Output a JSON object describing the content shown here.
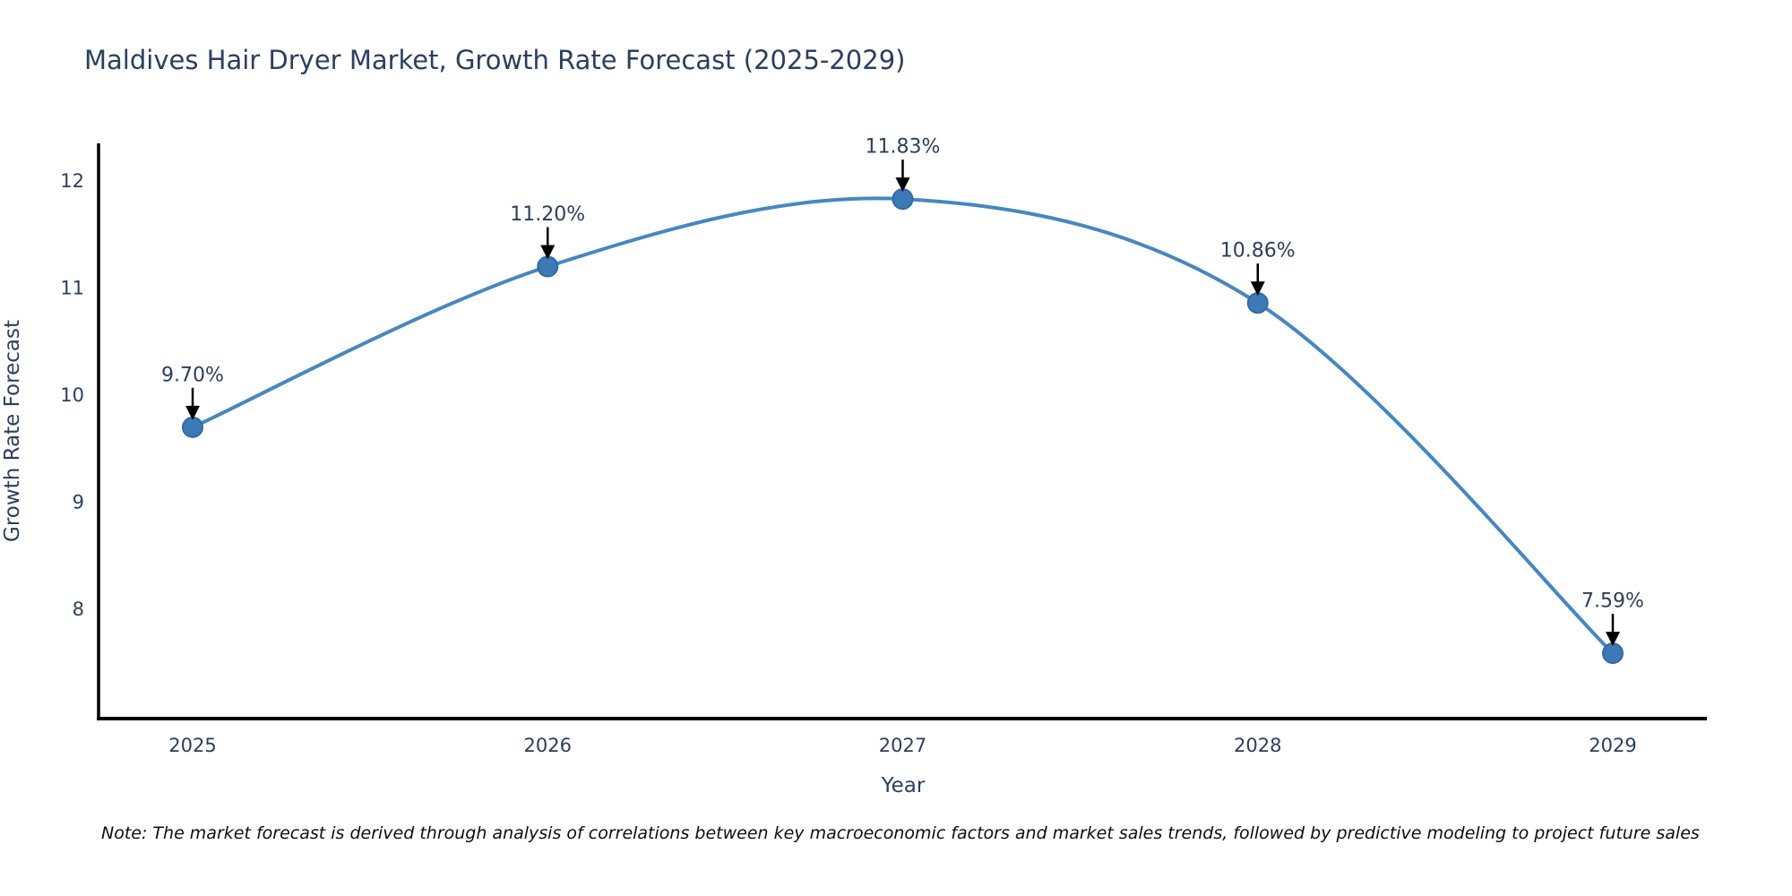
{
  "page": {
    "title": "Maldives Hair Dryer Market, Growth Rate Forecast (2025-2029)",
    "note": "Note: The market forecast is derived through analysis of correlations between key macroeconomic factors and market sales trends, followed by predictive modeling to project future sales"
  },
  "chart_data": {
    "type": "line",
    "title": "Maldives Hair Dryer Market, Growth Rate Forecast (2025-2029)",
    "x": [
      2025,
      2026,
      2027,
      2028,
      2029
    ],
    "series": [
      {
        "name": "Growth Rate Forecast",
        "values": [
          9.7,
          11.2,
          11.83,
          10.86,
          7.59
        ]
      }
    ],
    "data_labels": [
      "9.70%",
      "11.20%",
      "11.83%",
      "10.86%",
      "7.59%"
    ],
    "xlabel": "Year",
    "ylabel": "Growth Rate Forecast",
    "xticks": [
      "2025",
      "2026",
      "2027",
      "2028",
      "2029"
    ],
    "yticks": [
      8,
      9,
      10,
      11,
      12
    ],
    "xlim": [
      2024.735,
      2029.265
    ],
    "ylim": [
      6.98,
      12.35
    ],
    "line_shape": "spline",
    "grid": false,
    "legend": "none",
    "annotations_have_arrows": true,
    "colors": {
      "line": "#4687c0",
      "marker_fill": "#3d7ab5",
      "marker_edge": "#2f6ba6",
      "axis_line": "#000000",
      "tick_text": "#2a3f5f",
      "title_text": "#2a3f5f",
      "annotation_text": "#2a3f5f",
      "annotation_arrow": "#000000"
    }
  }
}
